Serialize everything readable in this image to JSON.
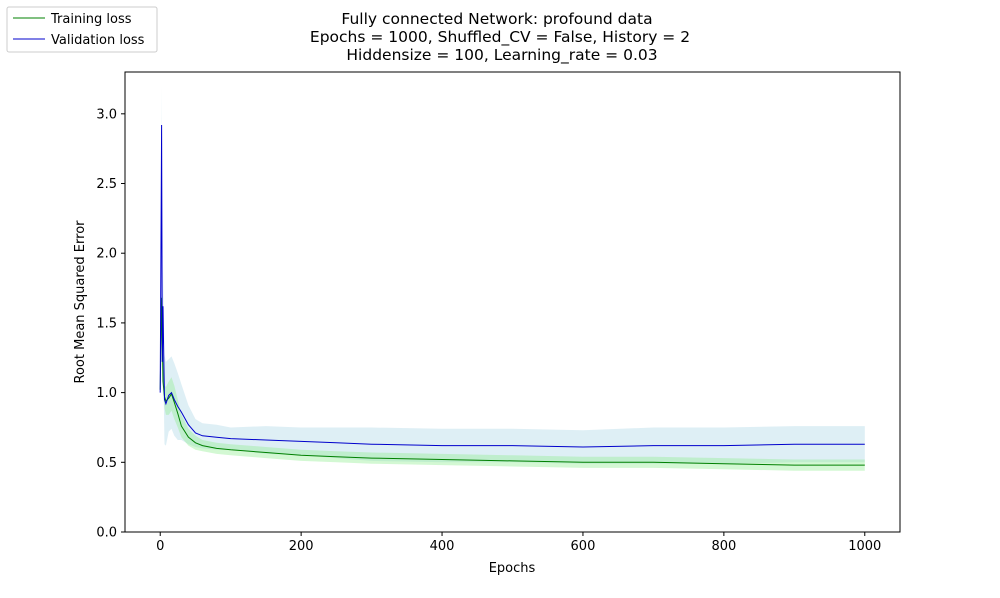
{
  "chart_data": {
    "type": "line",
    "title": [
      "Fully connected Network: profound data",
      "Epochs = 1000, Shuffled_CV = False, History = 2",
      "Hiddensize = 100, Learning_rate = 0.03"
    ],
    "xlabel": "Epochs",
    "ylabel": "Root Mean Squared Error",
    "xlim": [
      -50,
      1050
    ],
    "ylim": [
      0.0,
      3.3
    ],
    "xticks": [
      0,
      200,
      400,
      600,
      800,
      1000
    ],
    "xtick_labels": [
      "0",
      "200",
      "400",
      "600",
      "800",
      "1000"
    ],
    "yticks": [
      0.0,
      0.5,
      1.0,
      1.5,
      2.0,
      2.5,
      3.0
    ],
    "ytick_labels": [
      "0.0",
      "0.5",
      "1.0",
      "1.5",
      "2.0",
      "2.5",
      "3.0"
    ],
    "grid": false,
    "legend_position": "upper-left, outside plot area",
    "series": [
      {
        "name": "Training loss",
        "color": "#008000",
        "band_color": "#90ee90",
        "x": [
          0,
          2,
          4,
          6,
          8,
          12,
          16,
          20,
          25,
          30,
          40,
          50,
          60,
          80,
          100,
          150,
          200,
          250,
          300,
          400,
          500,
          600,
          700,
          800,
          900,
          1000
        ],
        "y": [
          1.02,
          1.68,
          1.08,
          0.97,
          0.94,
          0.96,
          0.99,
          0.93,
          0.85,
          0.76,
          0.68,
          0.64,
          0.62,
          0.6,
          0.59,
          0.57,
          0.55,
          0.54,
          0.53,
          0.52,
          0.51,
          0.5,
          0.5,
          0.49,
          0.48,
          0.48
        ],
        "band_halfwidth": [
          0.02,
          0.08,
          0.08,
          0.08,
          0.1,
          0.12,
          0.12,
          0.12,
          0.1,
          0.08,
          0.06,
          0.05,
          0.04,
          0.04,
          0.04,
          0.04,
          0.04,
          0.04,
          0.04,
          0.04,
          0.04,
          0.04,
          0.04,
          0.04,
          0.04,
          0.04
        ]
      },
      {
        "name": "Validation loss",
        "color": "#0000cc",
        "band_color": "#add8e6",
        "x": [
          0,
          2,
          3,
          4,
          5,
          6,
          8,
          12,
          16,
          20,
          25,
          30,
          40,
          50,
          60,
          80,
          100,
          150,
          200,
          250,
          300,
          400,
          500,
          600,
          700,
          800,
          900,
          1000
        ],
        "y": [
          1.0,
          2.92,
          1.22,
          1.62,
          1.24,
          0.95,
          0.92,
          0.98,
          1.0,
          0.95,
          0.9,
          0.86,
          0.77,
          0.71,
          0.69,
          0.68,
          0.67,
          0.66,
          0.65,
          0.64,
          0.63,
          0.62,
          0.62,
          0.61,
          0.62,
          0.62,
          0.63,
          0.63
        ],
        "band_halfwidth": [
          0.1,
          0.28,
          0.28,
          0.3,
          0.3,
          0.32,
          0.3,
          0.26,
          0.26,
          0.26,
          0.24,
          0.2,
          0.14,
          0.1,
          0.09,
          0.09,
          0.08,
          0.1,
          0.1,
          0.11,
          0.12,
          0.12,
          0.12,
          0.12,
          0.13,
          0.13,
          0.13,
          0.13
        ]
      }
    ]
  }
}
